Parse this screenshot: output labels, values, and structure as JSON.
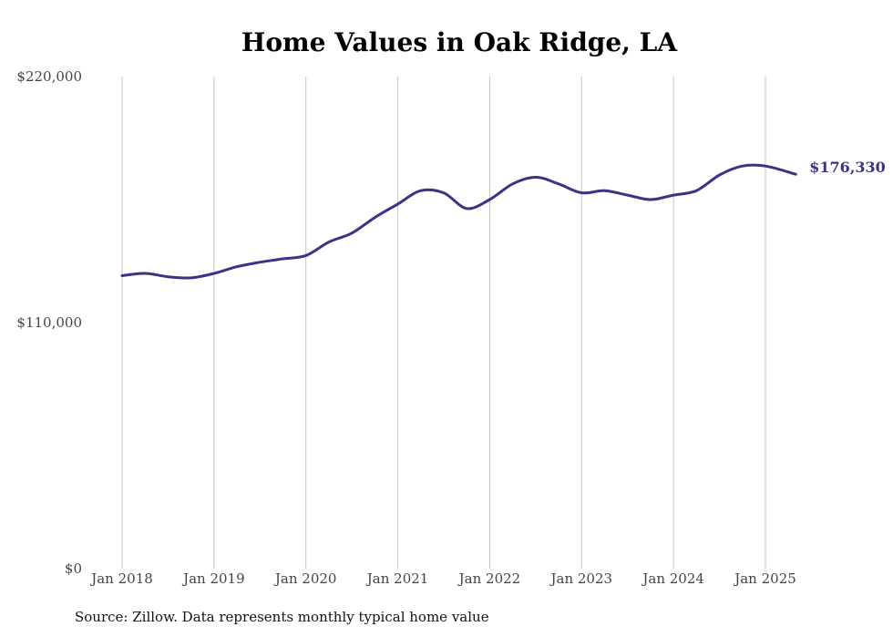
{
  "chart_data": {
    "type": "line",
    "title": "Home Values in Oak Ridge, LA",
    "xlabel": "",
    "ylabel": "",
    "ylim": [
      0,
      220000
    ],
    "y_ticks": [
      {
        "value": 0,
        "label": "$0"
      },
      {
        "value": 110000,
        "label": "$110,000"
      },
      {
        "value": 220000,
        "label": "$220,000"
      }
    ],
    "x_ticks": [
      {
        "value": 2018,
        "label": "Jan 2018"
      },
      {
        "value": 2019,
        "label": "Jan 2019"
      },
      {
        "value": 2020,
        "label": "Jan 2020"
      },
      {
        "value": 2021,
        "label": "Jan 2021"
      },
      {
        "value": 2022,
        "label": "Jan 2022"
      },
      {
        "value": 2023,
        "label": "Jan 2023"
      },
      {
        "value": 2024,
        "label": "Jan 2024"
      },
      {
        "value": 2025,
        "label": "Jan 2025"
      }
    ],
    "grid": {
      "vertical": true,
      "horizontal": false
    },
    "line_color": "#3a3486",
    "end_label": "$176,330",
    "series": [
      {
        "x": [
          2018.0,
          2018.25,
          2018.5,
          2018.75,
          2019.0,
          2019.25,
          2019.5,
          2019.75,
          2020.0,
          2020.25,
          2020.5,
          2020.75,
          2021.0,
          2021.25,
          2021.5,
          2021.75,
          2022.0,
          2022.25,
          2022.5,
          2022.75,
          2023.0,
          2023.25,
          2023.5,
          2023.75,
          2024.0,
          2024.25,
          2024.5,
          2024.75,
          2025.0,
          2025.33
        ],
        "values": [
          131000,
          132000,
          130500,
          130000,
          132000,
          135000,
          137000,
          138500,
          140000,
          146000,
          150000,
          157000,
          163000,
          169000,
          168000,
          161000,
          165000,
          172000,
          175000,
          172000,
          168000,
          169000,
          167000,
          165000,
          167000,
          169000,
          176000,
          180000,
          180000,
          176330
        ]
      }
    ]
  },
  "source_note": "Source: Zillow. Data represents monthly typical home value"
}
